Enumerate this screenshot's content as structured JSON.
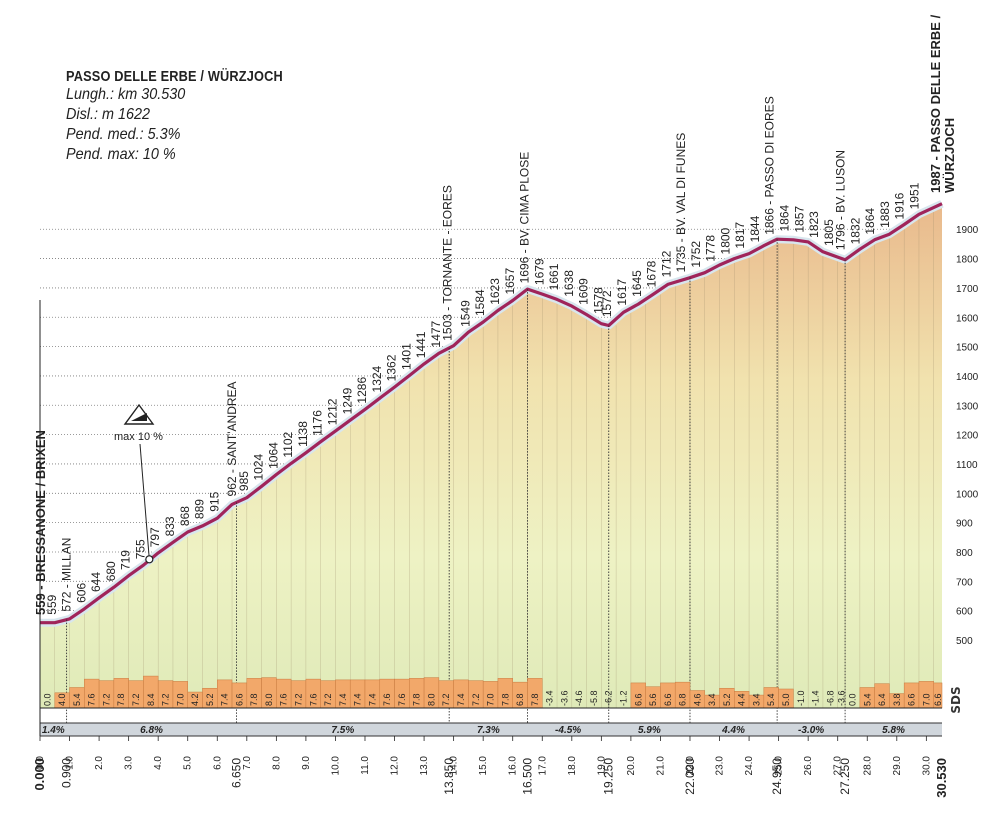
{
  "info": {
    "title": "PASSO DELLE ERBE / WÜRZJOCH",
    "length": "Lungh.: km 30.530",
    "elevation_gain": "Disl.: m 1622",
    "avg_gradient": "Pend. med.: 5.3%",
    "max_gradient": "Pend. max: 10 %"
  },
  "max_marker": {
    "label": "max 10 %",
    "km": 3.7,
    "elevation": 775
  },
  "logo": "SDS",
  "colors": {
    "profile_line": "#a0245a",
    "profile_outline": "#d8e6ee",
    "grade_bar": "#f2a86a",
    "grade_band": "#d0d6dc"
  },
  "chart_data": {
    "type": "area",
    "title": "PASSO DELLE ERBE / WÜRZJOCH",
    "xlim": [
      0,
      30.53
    ],
    "ylim": [
      400,
      1990
    ],
    "y_ticks": [
      500,
      600,
      700,
      800,
      900,
      1000,
      1100,
      1200,
      1300,
      1400,
      1500,
      1600,
      1700,
      1800,
      1900
    ],
    "x_ticks": [
      0,
      1,
      2,
      3,
      4,
      5,
      6,
      7,
      8,
      9,
      10,
      11,
      12,
      13,
      14,
      15,
      16,
      17,
      18,
      19,
      20,
      21,
      22,
      23,
      24,
      25,
      26,
      27,
      28,
      29,
      30
    ],
    "x_tick_labels": [
      "0.0",
      "1.0",
      "2.0",
      "3.0",
      "4.0",
      "5.0",
      "6.0",
      "7.0",
      "8.0",
      "9.0",
      "10.0",
      "11.0",
      "12.0",
      "13.0",
      "14.0",
      "15.0",
      "16.0",
      "17.0",
      "18.0",
      "19.0",
      "20.0",
      "21.0",
      "22.0",
      "23.0",
      "24.0",
      "25.0",
      "26.0",
      "27.0",
      "28.0",
      "29.0",
      "30.0"
    ],
    "profile": [
      {
        "km": 0,
        "alt": 559
      },
      {
        "km": 0.5,
        "alt": 559
      },
      {
        "km": 1,
        "alt": 572
      },
      {
        "km": 1.5,
        "alt": 606
      },
      {
        "km": 2,
        "alt": 644
      },
      {
        "km": 2.5,
        "alt": 680
      },
      {
        "km": 3,
        "alt": 719
      },
      {
        "km": 3.5,
        "alt": 755
      },
      {
        "km": 4,
        "alt": 797
      },
      {
        "km": 4.5,
        "alt": 833
      },
      {
        "km": 5,
        "alt": 868
      },
      {
        "km": 5.5,
        "alt": 889
      },
      {
        "km": 6,
        "alt": 915
      },
      {
        "km": 6.5,
        "alt": 962
      },
      {
        "km": 7,
        "alt": 985
      },
      {
        "km": 7.5,
        "alt": 1024
      },
      {
        "km": 8,
        "alt": 1064
      },
      {
        "km": 8.5,
        "alt": 1102
      },
      {
        "km": 9,
        "alt": 1138
      },
      {
        "km": 9.5,
        "alt": 1176
      },
      {
        "km": 10,
        "alt": 1212
      },
      {
        "km": 10.5,
        "alt": 1249
      },
      {
        "km": 11,
        "alt": 1286
      },
      {
        "km": 11.5,
        "alt": 1324
      },
      {
        "km": 12,
        "alt": 1362
      },
      {
        "km": 12.5,
        "alt": 1401
      },
      {
        "km": 13,
        "alt": 1441
      },
      {
        "km": 13.5,
        "alt": 1477
      },
      {
        "km": 14,
        "alt": 1503
      },
      {
        "km": 14.5,
        "alt": 1549
      },
      {
        "km": 15,
        "alt": 1584
      },
      {
        "km": 15.5,
        "alt": 1623
      },
      {
        "km": 16,
        "alt": 1657
      },
      {
        "km": 16.5,
        "alt": 1696
      },
      {
        "km": 17,
        "alt": 1679
      },
      {
        "km": 17.5,
        "alt": 1661
      },
      {
        "km": 18,
        "alt": 1638
      },
      {
        "km": 18.5,
        "alt": 1609
      },
      {
        "km": 19,
        "alt": 1578
      },
      {
        "km": 19.25,
        "alt": 1572
      },
      {
        "km": 19.75,
        "alt": 1617
      },
      {
        "km": 20.25,
        "alt": 1645
      },
      {
        "km": 20.75,
        "alt": 1678
      },
      {
        "km": 21.25,
        "alt": 1712
      },
      {
        "km": 22,
        "alt": 1735
      },
      {
        "km": 22.5,
        "alt": 1752
      },
      {
        "km": 23,
        "alt": 1778
      },
      {
        "km": 23.5,
        "alt": 1800
      },
      {
        "km": 24,
        "alt": 1817
      },
      {
        "km": 24.5,
        "alt": 1844
      },
      {
        "km": 24.95,
        "alt": 1866
      },
      {
        "km": 25.5,
        "alt": 1864
      },
      {
        "km": 26,
        "alt": 1857
      },
      {
        "km": 26.5,
        "alt": 1823
      },
      {
        "km": 27,
        "alt": 1805
      },
      {
        "km": 27.25,
        "alt": 1796
      },
      {
        "km": 27.75,
        "alt": 1832
      },
      {
        "km": 28.25,
        "alt": 1864
      },
      {
        "km": 28.75,
        "alt": 1883
      },
      {
        "km": 29.25,
        "alt": 1916
      },
      {
        "km": 29.75,
        "alt": 1951
      },
      {
        "km": 30.53,
        "alt": 1987
      }
    ],
    "alt_labels": [
      {
        "km": 0.4,
        "text": "559"
      },
      {
        "km": 0.9,
        "text": "572 - MILLAN"
      },
      {
        "km": 1.4,
        "text": "606"
      },
      {
        "km": 1.9,
        "text": "644"
      },
      {
        "km": 2.4,
        "text": "680"
      },
      {
        "km": 2.9,
        "text": "719"
      },
      {
        "km": 3.4,
        "text": "755"
      },
      {
        "km": 3.9,
        "text": "797"
      },
      {
        "km": 4.4,
        "text": "833"
      },
      {
        "km": 4.9,
        "text": "868"
      },
      {
        "km": 5.4,
        "text": "889"
      },
      {
        "km": 5.9,
        "text": "915"
      },
      {
        "km": 6.5,
        "text": "962 - SANT'ANDREA"
      },
      {
        "km": 6.9,
        "text": "985"
      },
      {
        "km": 7.4,
        "text": "1024"
      },
      {
        "km": 7.9,
        "text": "1064"
      },
      {
        "km": 8.4,
        "text": "1102"
      },
      {
        "km": 8.9,
        "text": "1138"
      },
      {
        "km": 9.4,
        "text": "1176"
      },
      {
        "km": 9.9,
        "text": "1212"
      },
      {
        "km": 10.4,
        "text": "1249"
      },
      {
        "km": 10.9,
        "text": "1286"
      },
      {
        "km": 11.4,
        "text": "1324"
      },
      {
        "km": 11.9,
        "text": "1362"
      },
      {
        "km": 12.4,
        "text": "1401"
      },
      {
        "km": 12.9,
        "text": "1441"
      },
      {
        "km": 13.4,
        "text": "1477"
      },
      {
        "km": 13.8,
        "text": "1503 - TORNANTE - EORES"
      },
      {
        "km": 14.4,
        "text": "1549"
      },
      {
        "km": 14.9,
        "text": "1584"
      },
      {
        "km": 15.4,
        "text": "1623"
      },
      {
        "km": 15.9,
        "text": "1657"
      },
      {
        "km": 16.4,
        "text": "1696 - BV. CIMA PLOSE"
      },
      {
        "km": 16.9,
        "text": "1679"
      },
      {
        "km": 17.4,
        "text": "1661"
      },
      {
        "km": 17.9,
        "text": "1638"
      },
      {
        "km": 18.4,
        "text": "1609"
      },
      {
        "km": 18.9,
        "text": "1578"
      },
      {
        "km": 19.2,
        "text": "1572"
      },
      {
        "km": 19.7,
        "text": "1617"
      },
      {
        "km": 20.2,
        "text": "1645"
      },
      {
        "km": 20.7,
        "text": "1678"
      },
      {
        "km": 21.2,
        "text": "1712"
      },
      {
        "km": 21.7,
        "text": "1735 - BV. VAL DI FUNES"
      },
      {
        "km": 22.2,
        "text": "1752"
      },
      {
        "km": 22.7,
        "text": "1778"
      },
      {
        "km": 23.2,
        "text": "1800"
      },
      {
        "km": 23.7,
        "text": "1817"
      },
      {
        "km": 24.2,
        "text": "1844"
      },
      {
        "km": 24.7,
        "text": "1866 - PASSO DI EORES"
      },
      {
        "km": 25.2,
        "text": "1864"
      },
      {
        "km": 25.7,
        "text": "1857"
      },
      {
        "km": 26.2,
        "text": "1823"
      },
      {
        "km": 26.7,
        "text": "1805"
      },
      {
        "km": 27.1,
        "text": "1796 - BV. LUSON"
      },
      {
        "km": 27.6,
        "text": "1832"
      },
      {
        "km": 28.1,
        "text": "1864"
      },
      {
        "km": 28.6,
        "text": "1883"
      },
      {
        "km": 29.1,
        "text": "1916"
      },
      {
        "km": 29.6,
        "text": "1951"
      }
    ],
    "endpoint_labels": [
      {
        "km": 0,
        "text": "559 - BRESSANONE / BRIXEN"
      },
      {
        "km": 30.53,
        "line1": "1987 - PASSO DELLE ERBE /",
        "line2": "WÜRZJOCH"
      }
    ],
    "segment_grades": [
      {
        "start": 0,
        "end": 0.5,
        "grade": 0.0
      },
      {
        "start": 0.5,
        "end": 1,
        "grade": 4.0
      },
      {
        "start": 1,
        "end": 1.5,
        "grade": 5.4
      },
      {
        "start": 1.5,
        "end": 2,
        "grade": 7.6
      },
      {
        "start": 2,
        "end": 2.5,
        "grade": 7.2
      },
      {
        "start": 2.5,
        "end": 3,
        "grade": 7.8
      },
      {
        "start": 3,
        "end": 3.5,
        "grade": 7.2
      },
      {
        "start": 3.5,
        "end": 4,
        "grade": 8.4
      },
      {
        "start": 4,
        "end": 4.5,
        "grade": 7.2
      },
      {
        "start": 4.5,
        "end": 5,
        "grade": 7.0
      },
      {
        "start": 5,
        "end": 5.5,
        "grade": 4.2
      },
      {
        "start": 5.5,
        "end": 6,
        "grade": 5.2
      },
      {
        "start": 6,
        "end": 6.5,
        "grade": 7.4
      },
      {
        "start": 6.5,
        "end": 7,
        "grade": 6.6
      },
      {
        "start": 7,
        "end": 7.5,
        "grade": 7.8
      },
      {
        "start": 7.5,
        "end": 8,
        "grade": 8.0
      },
      {
        "start": 8,
        "end": 8.5,
        "grade": 7.6
      },
      {
        "start": 8.5,
        "end": 9,
        "grade": 7.2
      },
      {
        "start": 9,
        "end": 9.5,
        "grade": 7.6
      },
      {
        "start": 9.5,
        "end": 10,
        "grade": 7.2
      },
      {
        "start": 10,
        "end": 10.5,
        "grade": 7.4
      },
      {
        "start": 10.5,
        "end": 11,
        "grade": 7.4
      },
      {
        "start": 11,
        "end": 11.5,
        "grade": 7.4
      },
      {
        "start": 11.5,
        "end": 12,
        "grade": 7.6
      },
      {
        "start": 12,
        "end": 12.5,
        "grade": 7.6
      },
      {
        "start": 12.5,
        "end": 13,
        "grade": 7.8
      },
      {
        "start": 13,
        "end": 13.5,
        "grade": 8.0
      },
      {
        "start": 13.5,
        "end": 14,
        "grade": 7.2
      },
      {
        "start": 14,
        "end": 14.5,
        "grade": 7.4
      },
      {
        "start": 14.5,
        "end": 15,
        "grade": 7.2
      },
      {
        "start": 15,
        "end": 15.5,
        "grade": 7.0
      },
      {
        "start": 15.5,
        "end": 16,
        "grade": 7.8
      },
      {
        "start": 16,
        "end": 16.5,
        "grade": 6.8
      },
      {
        "start": 16.5,
        "end": 17,
        "grade": 7.8
      },
      {
        "start": 17,
        "end": 17.5,
        "grade": -3.4
      },
      {
        "start": 17.5,
        "end": 18,
        "grade": -3.6
      },
      {
        "start": 18,
        "end": 18.5,
        "grade": -4.6
      },
      {
        "start": 18.5,
        "end": 19,
        "grade": -5.8
      },
      {
        "start": 19,
        "end": 19.5,
        "grade": -6.2
      },
      {
        "start": 19.5,
        "end": 20,
        "grade": -1.2
      },
      {
        "start": 20,
        "end": 20.5,
        "grade": 6.6
      },
      {
        "start": 20.5,
        "end": 21,
        "grade": 5.6
      },
      {
        "start": 21,
        "end": 21.5,
        "grade": 6.6
      },
      {
        "start": 21.5,
        "end": 22,
        "grade": 6.8
      },
      {
        "start": 22,
        "end": 22.5,
        "grade": 4.6
      },
      {
        "start": 22.5,
        "end": 23,
        "grade": 3.4
      },
      {
        "start": 23,
        "end": 23.5,
        "grade": 5.2
      },
      {
        "start": 23.5,
        "end": 24,
        "grade": 4.4
      },
      {
        "start": 24,
        "end": 24.5,
        "grade": 3.4
      },
      {
        "start": 24.5,
        "end": 25,
        "grade": 5.4
      },
      {
        "start": 25,
        "end": 25.5,
        "grade": 5.0
      },
      {
        "start": 25.5,
        "end": 26,
        "grade": -1.0
      },
      {
        "start": 26,
        "end": 26.5,
        "grade": -1.4
      },
      {
        "start": 26.5,
        "end": 27,
        "grade": -6.8
      },
      {
        "start": 27,
        "end": 27.25,
        "grade": -3.6
      },
      {
        "start": 27.25,
        "end": 27.75,
        "grade": 0.0
      },
      {
        "start": 27.75,
        "end": 28.25,
        "grade": 5.4
      },
      {
        "start": 28.25,
        "end": 28.75,
        "grade": 6.4
      },
      {
        "start": 28.75,
        "end": 29.25,
        "grade": 3.8
      },
      {
        "start": 29.25,
        "end": 29.75,
        "grade": 6.6
      },
      {
        "start": 29.75,
        "end": 30.25,
        "grade": 7.0
      },
      {
        "start": 30.25,
        "end": 30.53,
        "grade": 6.6
      }
    ],
    "sector_averages": [
      {
        "start": 0,
        "end": 0.9,
        "label": "1.4%"
      },
      {
        "start": 0.9,
        "end": 6.65,
        "label": "6.8%"
      },
      {
        "start": 6.65,
        "end": 13.85,
        "label": "7.5%"
      },
      {
        "start": 13.85,
        "end": 16.5,
        "label": "7.3%"
      },
      {
        "start": 16.5,
        "end": 19.25,
        "label": "-4.5%"
      },
      {
        "start": 19.25,
        "end": 22,
        "label": "5.9%"
      },
      {
        "start": 22,
        "end": 24.95,
        "label": "4.4%"
      },
      {
        "start": 24.95,
        "end": 27.25,
        "label": "-3.0%"
      },
      {
        "start": 27.25,
        "end": 30.53,
        "label": "5.8%"
      }
    ],
    "key_points": [
      {
        "km": 0,
        "label": "0.000"
      },
      {
        "km": 0.9,
        "label": "0.900"
      },
      {
        "km": 6.65,
        "label": "6.650"
      },
      {
        "km": 13.85,
        "label": "13.850"
      },
      {
        "km": 16.5,
        "label": "16.500"
      },
      {
        "km": 19.25,
        "label": "19.250"
      },
      {
        "km": 22,
        "label": "22.000"
      },
      {
        "km": 24.95,
        "label": "24.950"
      },
      {
        "km": 27.25,
        "label": "27.250"
      },
      {
        "km": 30.53,
        "label": "30.530"
      }
    ]
  }
}
